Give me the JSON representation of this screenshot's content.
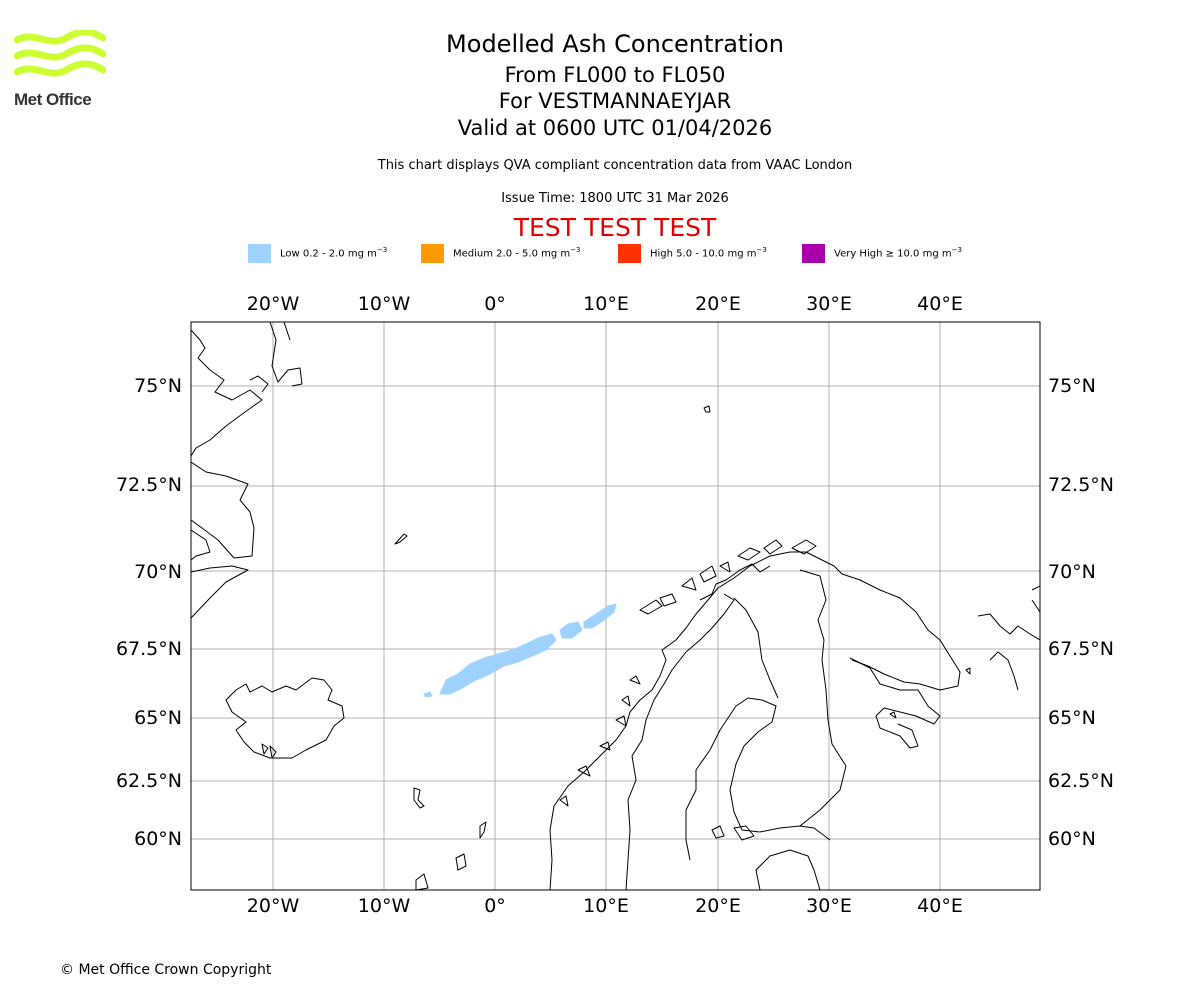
{
  "logo": {
    "text": "Met Office",
    "color": "#ccff33"
  },
  "titles": {
    "main": "Modelled Ash Concentration",
    "levels": "From FL000 to FL050",
    "volcano": "For VESTMANNAEYJAR",
    "valid": "Valid at 0600 UTC 01/04/2026",
    "note": "This chart displays QVA compliant concentration data from VAAC London",
    "issue": "Issue Time: 1800 UTC 31 Mar 2026",
    "test": "TEST TEST TEST"
  },
  "legend": [
    {
      "label": "Low 0.2 - 2.0 mg m",
      "exp": "−3",
      "color": "#a0d2ff"
    },
    {
      "label": "Medium 2.0 - 5.0 mg m",
      "exp": "−3",
      "color": "#ff9900"
    },
    {
      "label": "High 5.0 - 10.0 mg m",
      "exp": "−3",
      "color": "#ff3300"
    },
    {
      "label": "Very High  ≥  10.0 mg m",
      "exp": "−3",
      "color": "#aa00aa"
    }
  ],
  "axes": {
    "lon_labels": [
      "20°W",
      "10°W",
      "0°",
      "10°E",
      "20°E",
      "30°E",
      "40°E"
    ],
    "lat_labels": [
      "75°N",
      "72.5°N",
      "70°N",
      "67.5°N",
      "65°N",
      "62.5°N",
      "60°N"
    ]
  },
  "ash_plume": {
    "level": "Low 0.2 - 2.0",
    "color": "#a0d2ff"
  },
  "copyright": "© Met Office Crown Copyright"
}
